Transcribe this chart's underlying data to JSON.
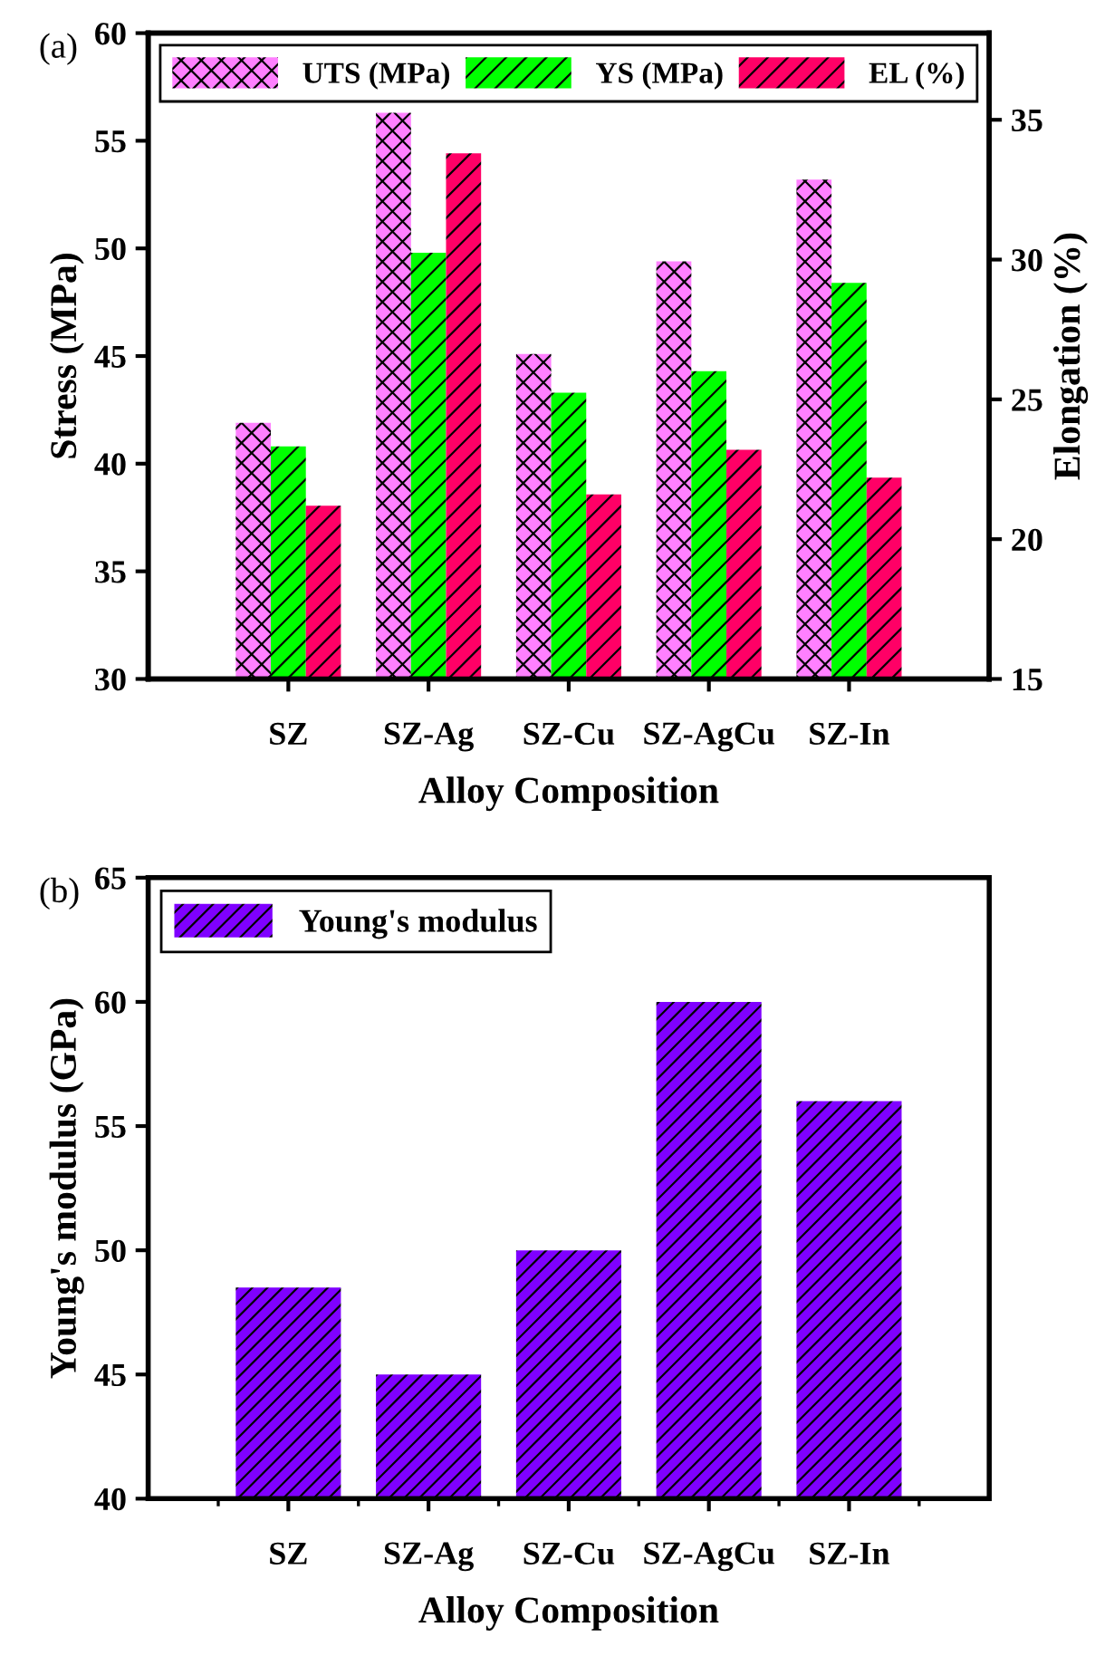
{
  "chart_data": [
    {
      "type": "bar",
      "xlabel": "Alloy Composition",
      "ylabel": "Stress (MPa)",
      "y2label": "Elongation (%)",
      "annotations": [
        "(a)"
      ],
      "categories": [
        "SZ",
        "SZ-Ag",
        "SZ-Cu",
        "SZ-AgCu",
        "SZ-In"
      ],
      "series": [
        {
          "name": "UTS (MPa)",
          "color": "#ff80ff",
          "values": [
            41.9,
            56.3,
            45.1,
            49.4,
            53.2
          ]
        },
        {
          "name": "YS (MPa)",
          "color": "#00ff00",
          "values": [
            40.8,
            49.8,
            43.3,
            44.3,
            48.4
          ]
        },
        {
          "name": "EL (%)",
          "color": "#ff0066",
          "axis": "y2",
          "values": [
            21.2,
            33.8,
            21.6,
            23.2,
            22.2
          ]
        }
      ],
      "ylim": [
        30,
        60
      ],
      "yticks": [
        30,
        35,
        40,
        45,
        50,
        55,
        60
      ],
      "y2lim": [
        15,
        38.1
      ],
      "y2ticks": [
        15,
        20,
        25,
        30,
        35
      ],
      "legend": "top",
      "grid": false
    },
    {
      "type": "bar",
      "xlabel": "Alloy Composition",
      "ylabel": "Young's modulus (GPa)",
      "annotations": [
        "(b)"
      ],
      "categories": [
        "SZ",
        "SZ-Ag",
        "SZ-Cu",
        "SZ-AgCu",
        "SZ-In"
      ],
      "series": [
        {
          "name": "Young's modulus",
          "color": "#7f00ff",
          "values": [
            48.5,
            45,
            50,
            60,
            56
          ]
        }
      ],
      "ylim": [
        40,
        65
      ],
      "yticks": [
        40,
        45,
        50,
        55,
        60,
        65
      ],
      "legend": "top left",
      "grid": false
    }
  ]
}
